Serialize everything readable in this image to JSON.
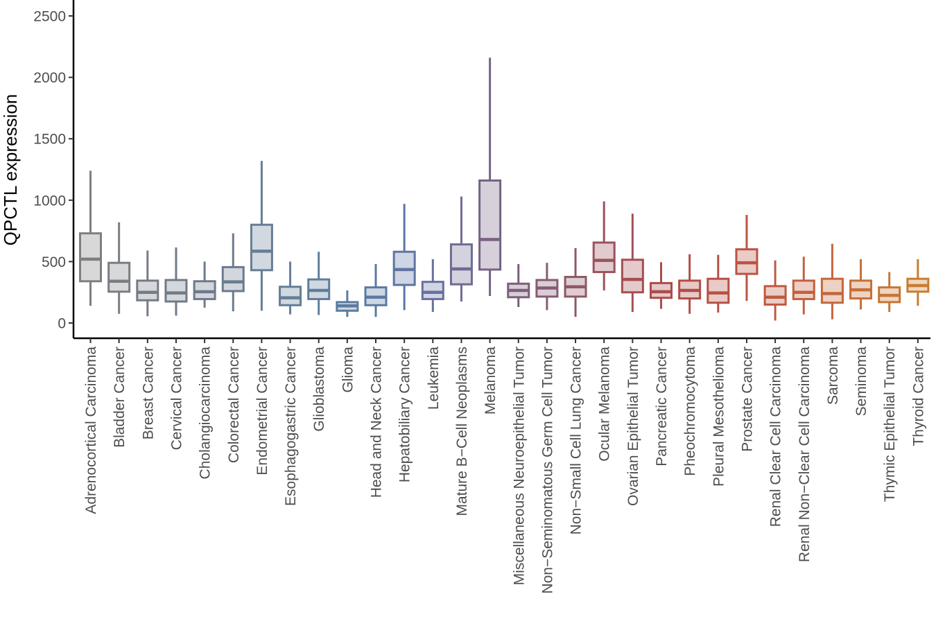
{
  "chart_data": {
    "type": "boxplot",
    "ylabel": "QPCTL expression",
    "xlabel": "",
    "ylim": [
      -110,
      2600
    ],
    "yticks": [
      0,
      500,
      1000,
      1500,
      2000,
      2500
    ],
    "ytick_labels": [
      "0",
      "500",
      "1000",
      "1500",
      "2000",
      "2500"
    ],
    "grid": false,
    "legend": "none",
    "categories": [
      "Adrenocortical Carcinoma",
      "Bladder Cancer",
      "Breast Cancer",
      "Cervical Cancer",
      "Cholangiocarcinoma",
      "Colorectal Cancer",
      "Endometrial Cancer",
      "Esophagogastric Cancer",
      "Glioblastoma",
      "Glioma",
      "Head and Neck Cancer",
      "Hepatobiliary Cancer",
      "Leukemia",
      "Mature B−Cell Neoplasms",
      "Melanoma",
      "Miscellaneous Neuroepithelial Tumor",
      "Non−Seminomatous Germ Cell Tumor",
      "Non−Small Cell Lung Cancer",
      "Ocular Melanoma",
      "Ovarian Epithelial Tumor",
      "Pancreatic Cancer",
      "Pheochromocytoma",
      "Pleural Mesothelioma",
      "Prostate Cancer",
      "Renal Clear Cell Carcinoma",
      "Renal Non−Clear Cell Carcinoma",
      "Sarcoma",
      "Seminoma",
      "Thymic Epithelial Tumor",
      "Thyroid Cancer"
    ],
    "boxes": [
      {
        "min": 140,
        "q1": 340,
        "median": 520,
        "q3": 730,
        "max": 1240
      },
      {
        "min": 75,
        "q1": 255,
        "median": 340,
        "q3": 490,
        "max": 820
      },
      {
        "min": 55,
        "q1": 185,
        "median": 250,
        "q3": 345,
        "max": 590
      },
      {
        "min": 60,
        "q1": 175,
        "median": 245,
        "q3": 350,
        "max": 615
      },
      {
        "min": 125,
        "q1": 195,
        "median": 255,
        "q3": 340,
        "max": 500
      },
      {
        "min": 95,
        "q1": 260,
        "median": 335,
        "q3": 455,
        "max": 730
      },
      {
        "min": 100,
        "q1": 430,
        "median": 585,
        "q3": 800,
        "max": 1320
      },
      {
        "min": 70,
        "q1": 145,
        "median": 205,
        "q3": 295,
        "max": 500
      },
      {
        "min": 65,
        "q1": 195,
        "median": 265,
        "q3": 355,
        "max": 580
      },
      {
        "min": 50,
        "q1": 100,
        "median": 140,
        "q3": 170,
        "max": 265
      },
      {
        "min": 50,
        "q1": 145,
        "median": 210,
        "q3": 290,
        "max": 480
      },
      {
        "min": 105,
        "q1": 310,
        "median": 435,
        "q3": 580,
        "max": 970
      },
      {
        "min": 90,
        "q1": 195,
        "median": 250,
        "q3": 335,
        "max": 520
      },
      {
        "min": 175,
        "q1": 315,
        "median": 440,
        "q3": 640,
        "max": 1030
      },
      {
        "min": 220,
        "q1": 435,
        "median": 680,
        "q3": 1160,
        "max": 2160
      },
      {
        "min": 130,
        "q1": 210,
        "median": 265,
        "q3": 320,
        "max": 480
      },
      {
        "min": 105,
        "q1": 215,
        "median": 285,
        "q3": 350,
        "max": 490
      },
      {
        "min": 50,
        "q1": 215,
        "median": 295,
        "q3": 375,
        "max": 610
      },
      {
        "min": 265,
        "q1": 415,
        "median": 510,
        "q3": 655,
        "max": 990
      },
      {
        "min": 90,
        "q1": 250,
        "median": 355,
        "q3": 515,
        "max": 890
      },
      {
        "min": 115,
        "q1": 205,
        "median": 255,
        "q3": 325,
        "max": 495
      },
      {
        "min": 75,
        "q1": 200,
        "median": 265,
        "q3": 345,
        "max": 560
      },
      {
        "min": 85,
        "q1": 165,
        "median": 245,
        "q3": 360,
        "max": 555
      },
      {
        "min": 180,
        "q1": 400,
        "median": 490,
        "q3": 600,
        "max": 880
      },
      {
        "min": 20,
        "q1": 150,
        "median": 210,
        "q3": 300,
        "max": 510
      },
      {
        "min": 70,
        "q1": 195,
        "median": 250,
        "q3": 345,
        "max": 540
      },
      {
        "min": 30,
        "q1": 165,
        "median": 240,
        "q3": 360,
        "max": 645
      },
      {
        "min": 110,
        "q1": 200,
        "median": 270,
        "q3": 345,
        "max": 520
      },
      {
        "min": 90,
        "q1": 170,
        "median": 225,
        "q3": 290,
        "max": 415
      },
      {
        "min": 140,
        "q1": 255,
        "median": 305,
        "q3": 360,
        "max": 520
      }
    ],
    "colors": [
      "#7f7f7f",
      "#7a7d82",
      "#757b85",
      "#727a88",
      "#6e7a8b",
      "#6a7b8f",
      "#667d94",
      "#637e98",
      "#5f7e9c",
      "#5b7ca0",
      "#5a7aa2",
      "#5d75a2",
      "#67719e",
      "#6f6b93",
      "#766283",
      "#7c5f7c",
      "#855c73",
      "#8e5867",
      "#9a535c",
      "#a44f53",
      "#ab4d4c",
      "#b04d47",
      "#b65045",
      "#bb5343",
      "#bf5941",
      "#c2603e",
      "#c4673b",
      "#c66e38",
      "#c77635",
      "#c87d32"
    ],
    "fill_opacity": 0.3
  }
}
